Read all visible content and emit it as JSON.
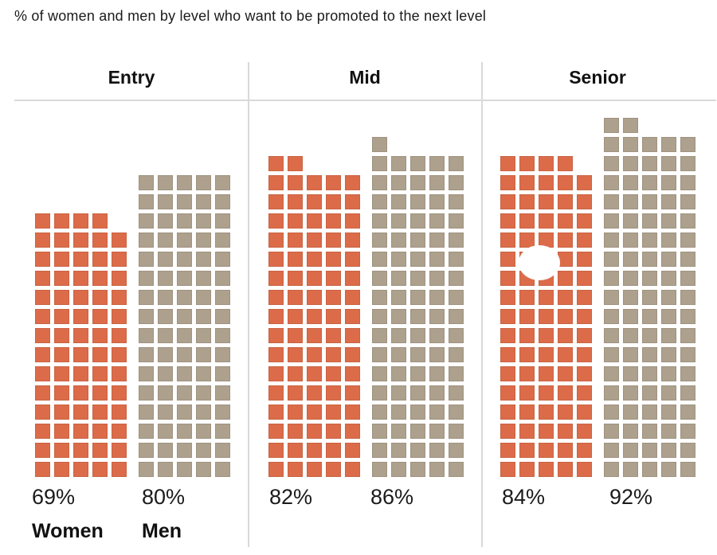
{
  "title": "% of women and men by level who want to be promoted to the next level",
  "legend": {
    "women": "Women",
    "men": "Men"
  },
  "colors": {
    "women_square": "#DC6C49",
    "men_square": "#ADA08C",
    "divider": "#D9D9D9",
    "text": "#1B1B1B"
  },
  "chart_data": {
    "type": "waffle",
    "title": "% of women and men by level who want to be promoted to the next level",
    "unit": "percent",
    "columns_per_grid": 5,
    "one_square_equals": 1,
    "square_colors": {
      "Women": "#DC6C49",
      "Men": "#ADA08C"
    },
    "legend_labels": [
      "Women",
      "Men"
    ],
    "legend_position": "below-first-group",
    "groups": [
      {
        "label": "Entry",
        "series": [
          {
            "name": "Women",
            "value": 69,
            "display": "69%"
          },
          {
            "name": "Men",
            "value": 80,
            "display": "80%"
          }
        ]
      },
      {
        "label": "Mid",
        "series": [
          {
            "name": "Women",
            "value": 82,
            "display": "82%"
          },
          {
            "name": "Men",
            "value": 86,
            "display": "86%"
          }
        ]
      },
      {
        "label": "Senior",
        "series": [
          {
            "name": "Women",
            "value": 84,
            "display": "84%"
          },
          {
            "name": "Men",
            "value": 92,
            "display": "92%"
          }
        ]
      }
    ]
  }
}
